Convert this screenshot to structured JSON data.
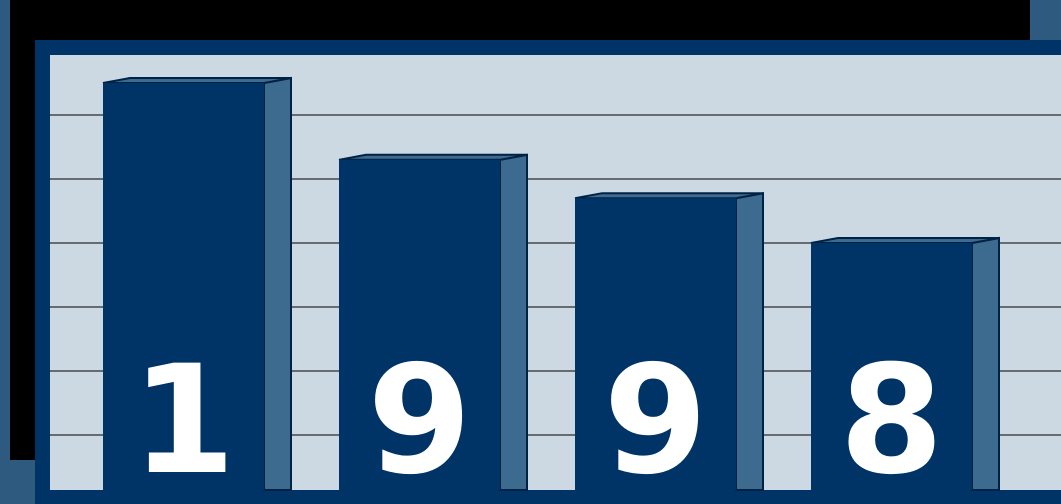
{
  "chart_data": {
    "type": "bar3d",
    "categories": [
      "1",
      "9",
      "9",
      "8"
    ],
    "values": [
      6.5,
      5.3,
      4.7,
      4.0
    ],
    "color": "#003366",
    "side_color": "#3d6a8f",
    "ylim": [
      0,
      7
    ],
    "yticks": [
      1,
      2,
      3,
      4,
      5,
      6
    ],
    "grid": true
  }
}
